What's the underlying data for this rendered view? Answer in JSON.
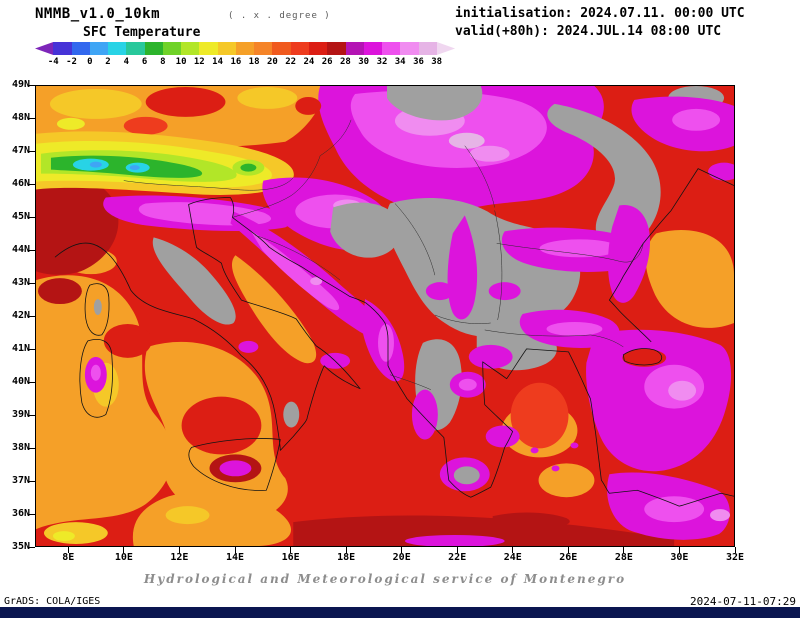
{
  "header": {
    "model": "NMMB_v1.0_10km",
    "subtitle": "( . x . degree )",
    "field": "SFC Temperature",
    "init_line": "initialisation: 2024.07.11. 00:00 UTC",
    "valid_line": "valid(+80h): 2024.JUL.14 08:00 UTC"
  },
  "colorbar": {
    "tick_labels": [
      "-4",
      "-2",
      "0",
      "2",
      "4",
      "6",
      "8",
      "10",
      "12",
      "14",
      "16",
      "18",
      "20",
      "22",
      "24",
      "26",
      "28",
      "30",
      "32",
      "34",
      "36",
      "38"
    ],
    "colors": [
      "#7d26b9",
      "#4633d7",
      "#3268ee",
      "#3fa5f5",
      "#28d3e6",
      "#28c89b",
      "#2cb42c",
      "#6fd228",
      "#b2e628",
      "#eeea28",
      "#f5c828",
      "#f5a028",
      "#f58428",
      "#f05a1e",
      "#ee3c1e",
      "#dc1e14",
      "#b41414",
      "#b414b4",
      "#dc14dc",
      "#ee50ee",
      "#f08cf0",
      "#e6b4e6",
      "#f0d7f0"
    ],
    "units": "degree"
  },
  "map": {
    "lat_labels": [
      "49N",
      "48N",
      "47N",
      "46N",
      "45N",
      "44N",
      "43N",
      "42N",
      "41N",
      "40N",
      "39N",
      "38N",
      "37N",
      "36N",
      "35N"
    ],
    "lon_labels": [
      "8E",
      "10E",
      "12E",
      "14E",
      "16E",
      "18E",
      "20E",
      "22E",
      "24E",
      "26E",
      "28E",
      "30E",
      "32E"
    ],
    "terrain_gray": "#a0a0a0"
  },
  "footer": {
    "service": "Hydrological and Meteorological service of Montenegro",
    "credit": "GrADS: COLA/IGES",
    "timestamp": "2024-07-11-07:29",
    "bar_color": "#0a1650"
  }
}
